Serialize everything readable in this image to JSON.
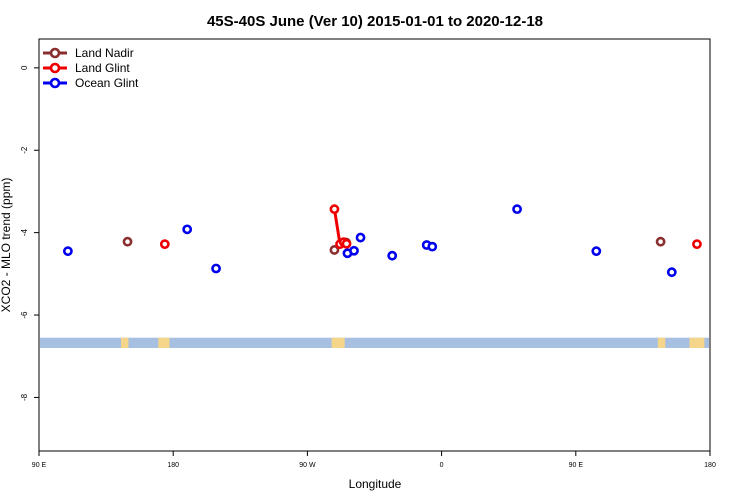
{
  "chart_data": {
    "type": "scatter",
    "title": "45S-40S June (Ver 10)   2015-01-01 to 2020-12-18",
    "xlabel": "Longitude",
    "ylabel": "XCO2 - MLO trend (ppm)",
    "xlim": [
      90,
      450
    ],
    "ylim": [
      -9.3,
      0.7
    ],
    "x_ticks": [
      {
        "value": 90,
        "label": "90 E"
      },
      {
        "value": 162,
        "label": "180"
      },
      {
        "value": 234,
        "label": "90 W"
      },
      {
        "value": 306,
        "label": "0"
      },
      {
        "value": 378,
        "label": "90 E"
      },
      {
        "value": 450,
        "label": "180"
      }
    ],
    "y_ticks": [
      {
        "value": 0,
        "label": "0"
      },
      {
        "value": -2,
        "label": "-2"
      },
      {
        "value": -4,
        "label": "-4"
      },
      {
        "value": -6,
        "label": "-6"
      },
      {
        "value": -8,
        "label": "-8"
      }
    ],
    "legend_position": "top-left",
    "series": [
      {
        "name": "Land Nadir",
        "color": "#8b2e2e",
        "connect": false,
        "points": [
          {
            "x": 137.5,
            "y": -4.22
          },
          {
            "x": 248.5,
            "y": -4.42
          },
          {
            "x": 254.8,
            "y": -4.24
          },
          {
            "x": 423.5,
            "y": -4.22
          }
        ]
      },
      {
        "name": "Land Glint",
        "color": "#ee0000",
        "connect": true,
        "points": [
          {
            "x": 248.5,
            "y": -3.43
          },
          {
            "x": 251.5,
            "y": -4.28
          },
          {
            "x": 253.5,
            "y": -4.23
          },
          {
            "x": 255.0,
            "y": -4.27
          }
        ],
        "extra_points": [
          {
            "x": 157.5,
            "y": -4.28
          },
          {
            "x": 443.0,
            "y": -4.28
          }
        ]
      },
      {
        "name": "Ocean Glint",
        "color": "#0000ee",
        "connect": false,
        "points": [
          {
            "x": 105.5,
            "y": -4.45
          },
          {
            "x": 169.5,
            "y": -3.92
          },
          {
            "x": 185.0,
            "y": -4.87
          },
          {
            "x": 255.5,
            "y": -4.5
          },
          {
            "x": 259.0,
            "y": -4.44
          },
          {
            "x": 262.5,
            "y": -4.12
          },
          {
            "x": 279.5,
            "y": -4.56
          },
          {
            "x": 298.0,
            "y": -4.3
          },
          {
            "x": 301.0,
            "y": -4.34
          },
          {
            "x": 346.5,
            "y": -3.43
          },
          {
            "x": 389.0,
            "y": -4.45
          },
          {
            "x": 429.5,
            "y": -4.96
          }
        ]
      }
    ],
    "map_strip": {
      "y_top": -6.55,
      "y_bottom": -6.8,
      "ocean_color": "#a7bfe0",
      "land_color": "#f5d58a",
      "land_segments": [
        [
          134,
          138
        ],
        [
          154,
          160
        ],
        [
          247,
          254
        ],
        [
          422,
          426
        ],
        [
          439,
          447
        ]
      ]
    }
  }
}
